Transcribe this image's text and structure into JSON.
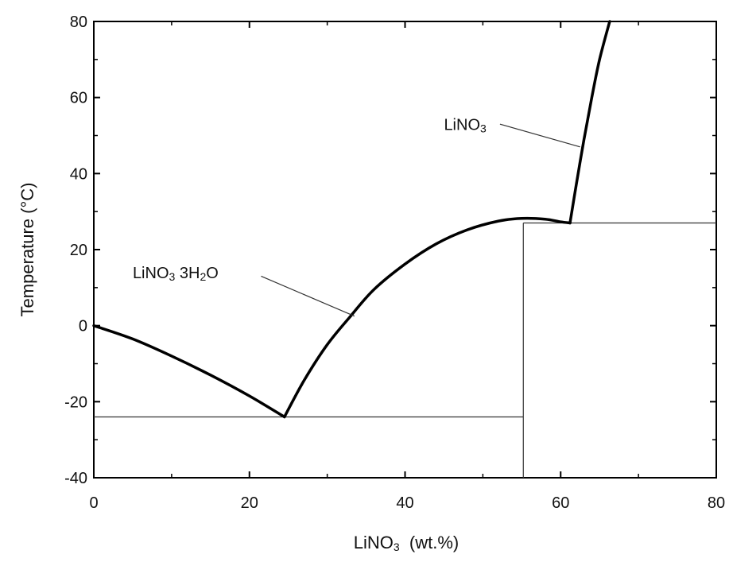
{
  "chart_data": {
    "type": "line",
    "xlabel": {
      "main": "LiNO",
      "sub": "3",
      "rest": "  (wt.%)"
    },
    "ylabel": "Temperature (°C)",
    "xlim": [
      0,
      80
    ],
    "ylim": [
      -40,
      80
    ],
    "xticks": [
      "0",
      "20",
      "40",
      "60",
      "80"
    ],
    "yticks": [
      "-40",
      "-20",
      "0",
      "20",
      "40",
      "60",
      "80"
    ],
    "series": [
      {
        "label_key": "trihydrate_curve_left",
        "x": [
          0,
          5,
          10,
          15,
          20,
          24.5
        ],
        "y": [
          0,
          -3.5,
          -8,
          -13,
          -18.5,
          -24
        ]
      },
      {
        "label_key": "trihydrate_curve_right",
        "x": [
          24.5,
          27,
          30,
          33,
          36,
          40,
          44,
          48,
          52,
          55,
          58,
          60,
          61.2
        ],
        "y": [
          -24,
          -14.5,
          -5,
          2.5,
          9.5,
          16.2,
          21.5,
          25.2,
          27.5,
          28.2,
          28,
          27.3,
          27
        ]
      },
      {
        "label_key": "anhydrous_curve",
        "x": [
          61.2,
          62,
          63,
          64,
          65,
          66.3
        ],
        "y": [
          27,
          37,
          49,
          60,
          70,
          80
        ]
      }
    ],
    "lines": [
      {
        "type": "horizontal",
        "y": -24,
        "x_from": 0,
        "x_to": 55.2
      },
      {
        "type": "vertical",
        "x": 55.2,
        "y_from": -40,
        "y_to": 27
      },
      {
        "type": "horizontal",
        "y": 27,
        "x_from": 55.2,
        "x_to": 80
      }
    ],
    "annotations": [
      {
        "key": "lino3_3h2o",
        "parts": [
          "LiNO",
          "3",
          " 3H",
          "2",
          "O"
        ],
        "text_x": 5,
        "text_y": 12.5,
        "leader_from": [
          21.5,
          13
        ],
        "leader_to": [
          33.5,
          2.5
        ]
      },
      {
        "key": "lino3",
        "parts": [
          "LiNO",
          "3"
        ],
        "text_x": 45,
        "text_y": 51.5,
        "leader_from": [
          52.2,
          53
        ],
        "leader_to": [
          62.5,
          47
        ]
      }
    ]
  }
}
